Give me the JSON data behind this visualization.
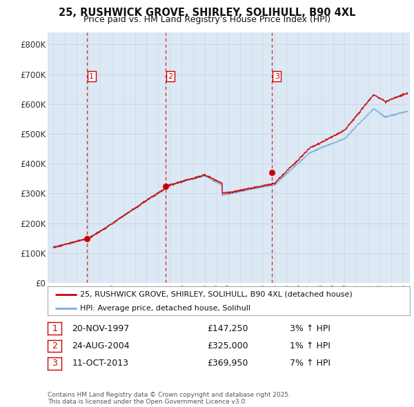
{
  "title": "25, RUSHWICK GROVE, SHIRLEY, SOLIHULL, B90 4XL",
  "subtitle": "Price paid vs. HM Land Registry's House Price Index (HPI)",
  "legend_line1": "25, RUSHWICK GROVE, SHIRLEY, SOLIHULL, B90 4XL (detached house)",
  "legend_line2": "HPI: Average price, detached house, Solihull",
  "sale_color": "#cc0000",
  "hpi_color": "#7aaadd",
  "vline_color": "#cc0000",
  "annotation_color": "#cc0000",
  "grid_color": "#c8d8e8",
  "chart_bg": "#dce8f4",
  "background_color": "#ffffff",
  "sales": [
    {
      "label": "1",
      "date": "20-NOV-1997",
      "year": 1997.88,
      "price": 147250,
      "hpi_pct": "3% ↑ HPI"
    },
    {
      "label": "2",
      "date": "24-AUG-2004",
      "year": 2004.64,
      "price": 325000,
      "hpi_pct": "1% ↑ HPI"
    },
    {
      "label": "3",
      "date": "11-OCT-2013",
      "year": 2013.78,
      "price": 369950,
      "hpi_pct": "7% ↑ HPI"
    }
  ],
  "footer_line1": "Contains HM Land Registry data © Crown copyright and database right 2025.",
  "footer_line2": "This data is licensed under the Open Government Licence v3.0.",
  "ylim": [
    0,
    840000
  ],
  "yticks": [
    0,
    100000,
    200000,
    300000,
    400000,
    500000,
    600000,
    700000,
    800000
  ],
  "ytick_labels": [
    "£0",
    "£100K",
    "£200K",
    "£300K",
    "£400K",
    "£500K",
    "£600K",
    "£700K",
    "£800K"
  ],
  "xstart": 1994.5,
  "xend": 2025.6
}
